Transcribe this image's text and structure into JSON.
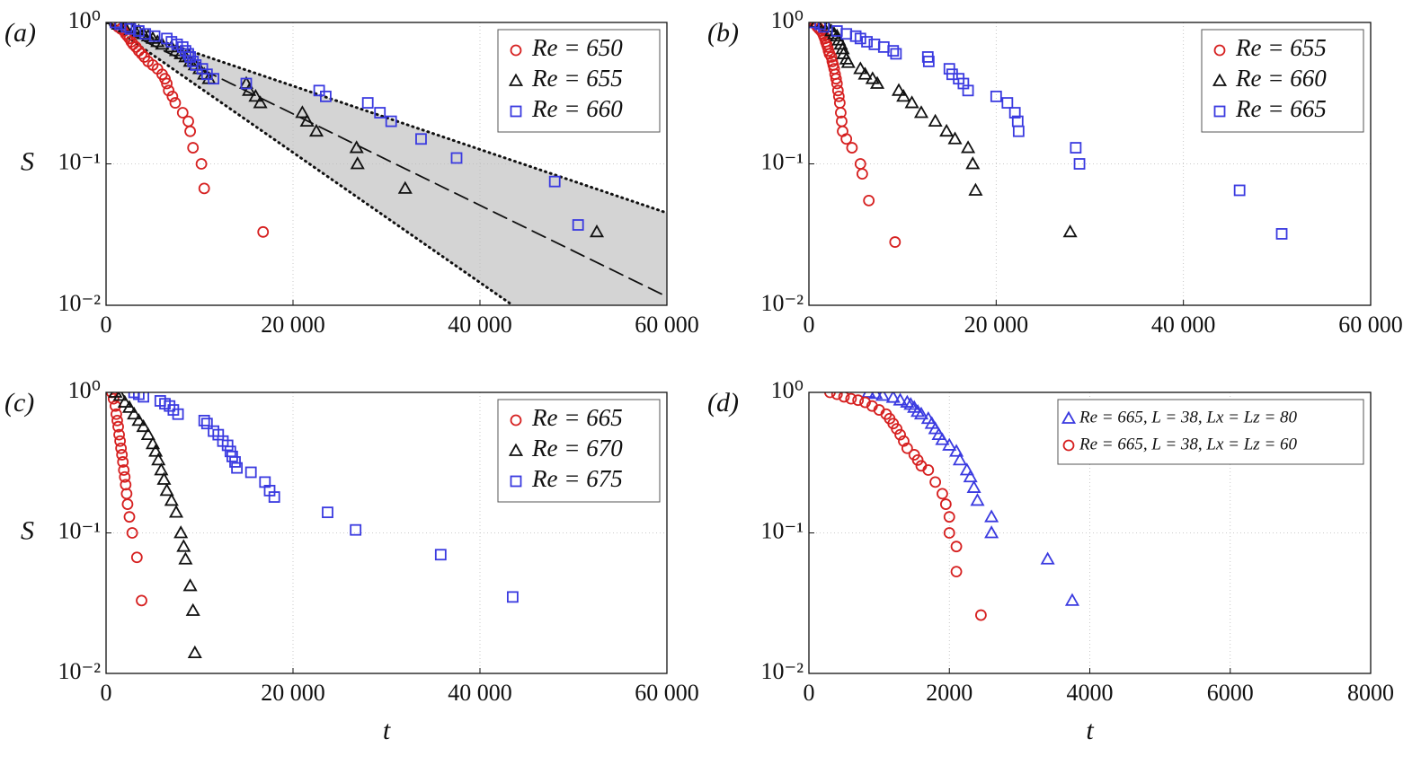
{
  "chart_data": [
    {
      "type": "scatter",
      "panel": "(a)",
      "ylabel": "S",
      "log_y": true,
      "grid": true,
      "legend": "upper right",
      "xlim": [
        0,
        60000
      ],
      "ylim": [
        0.01,
        1
      ],
      "xticks": [
        0,
        {
          "value": 20000,
          "label": "20 000"
        },
        {
          "value": 40000,
          "label": "40 000"
        },
        {
          "value": 60000,
          "label": "60 000"
        }
      ],
      "yticks": [
        {
          "value": 0.01,
          "label": "10⁻²"
        },
        {
          "value": 0.1,
          "label": "10⁻¹"
        },
        {
          "value": 1,
          "label": "10⁰"
        }
      ],
      "shade": {
        "between": [
          0,
          1
        ],
        "color": "#d4d4d4"
      },
      "lines": [
        {
          "style": "dotted",
          "x": [
            0,
            60000
          ],
          "values": [
            1,
            0.045
          ]
        },
        {
          "style": "dotted",
          "x": [
            0,
            43500
          ],
          "values": [
            1,
            0.01
          ]
        },
        {
          "style": "dashed",
          "x": [
            0,
            60000
          ],
          "values": [
            1,
            0.0115
          ]
        }
      ],
      "series": [
        {
          "name": "Re = 650",
          "color": "#d62020",
          "marker": "circle",
          "x": [
            1000,
            1300,
            1600,
            1900,
            2100,
            2300,
            2500,
            2700,
            2900,
            3200,
            3500,
            3800,
            4100,
            4500,
            5000,
            5500,
            6000,
            6300,
            6500,
            6700,
            7100,
            7400,
            8200,
            8800,
            9000,
            9300,
            10200,
            10500,
            16800
          ],
          "values": [
            0.97,
            0.93,
            0.9,
            0.87,
            0.83,
            0.8,
            0.77,
            0.73,
            0.7,
            0.67,
            0.63,
            0.6,
            0.57,
            0.53,
            0.5,
            0.47,
            0.43,
            0.4,
            0.37,
            0.33,
            0.3,
            0.27,
            0.23,
            0.2,
            0.17,
            0.13,
            0.1,
            0.067,
            0.033
          ]
        },
        {
          "name": "Re = 655",
          "color": "#111111",
          "marker": "triangle",
          "x": [
            1300,
            2000,
            3000,
            3500,
            4000,
            4500,
            5000,
            5500,
            6000,
            7000,
            7500,
            8000,
            8500,
            9000,
            9500,
            10000,
            10500,
            11000,
            15000,
            15300,
            16000,
            16500,
            21000,
            21500,
            22500,
            26800,
            26900,
            32000,
            52500
          ],
          "values": [
            0.97,
            0.93,
            0.9,
            0.87,
            0.83,
            0.8,
            0.77,
            0.73,
            0.7,
            0.67,
            0.63,
            0.6,
            0.57,
            0.53,
            0.5,
            0.47,
            0.43,
            0.4,
            0.37,
            0.33,
            0.3,
            0.27,
            0.23,
            0.2,
            0.17,
            0.13,
            0.1,
            0.067,
            0.033
          ]
        },
        {
          "name": "Re = 660",
          "color": "#3a3ae0",
          "marker": "square",
          "x": [
            1000,
            1500,
            2200,
            2600,
            3500,
            4200,
            5200,
            6500,
            7000,
            7600,
            8200,
            8500,
            8800,
            9000,
            9300,
            9600,
            10300,
            10800,
            11500,
            15000,
            22800,
            23500,
            28000,
            29300,
            30500,
            33700,
            37500,
            48000,
            50500
          ],
          "values": [
            1.0,
            0.97,
            0.93,
            0.9,
            0.87,
            0.83,
            0.8,
            0.77,
            0.73,
            0.7,
            0.67,
            0.63,
            0.6,
            0.57,
            0.53,
            0.5,
            0.47,
            0.43,
            0.4,
            0.37,
            0.33,
            0.3,
            0.27,
            0.23,
            0.2,
            0.15,
            0.11,
            0.075,
            0.037
          ]
        }
      ]
    },
    {
      "type": "scatter",
      "panel": "(b)",
      "log_y": true,
      "grid": true,
      "legend": "upper right",
      "xlim": [
        0,
        60000
      ],
      "ylim": [
        0.01,
        1
      ],
      "xticks": [
        0,
        {
          "value": 20000,
          "label": "20 000"
        },
        {
          "value": 40000,
          "label": "40 000"
        },
        {
          "value": 60000,
          "label": "60 000"
        }
      ],
      "yticks": [
        {
          "value": 0.01,
          "label": "10⁻²"
        },
        {
          "value": 0.1,
          "label": "10⁻¹"
        },
        {
          "value": 1,
          "label": "10⁰"
        }
      ],
      "series": [
        {
          "name": "Re = 655",
          "color": "#d62020",
          "marker": "circle",
          "x": [
            500,
            700,
            900,
            1100,
            1300,
            1500,
            1600,
            1700,
            1800,
            1900,
            2000,
            2100,
            2200,
            2400,
            2500,
            2600,
            2700,
            2800,
            2900,
            3000,
            3100,
            3200,
            3300,
            3400,
            3500,
            3600,
            4000,
            4600,
            5500,
            5700,
            6400,
            9200
          ],
          "values": [
            1,
            0.97,
            0.93,
            0.9,
            0.87,
            0.83,
            0.8,
            0.77,
            0.73,
            0.7,
            0.67,
            0.63,
            0.6,
            0.57,
            0.53,
            0.5,
            0.47,
            0.43,
            0.4,
            0.37,
            0.33,
            0.3,
            0.27,
            0.23,
            0.2,
            0.17,
            0.15,
            0.13,
            0.1,
            0.085,
            0.055,
            0.028
          ]
        },
        {
          "name": "Re = 660",
          "color": "#111111",
          "marker": "triangle",
          "x": [
            800,
            1400,
            2000,
            2400,
            2700,
            3000,
            3200,
            3400,
            3600,
            3700,
            4000,
            4200,
            5500,
            6000,
            6800,
            7300,
            9600,
            10100,
            11000,
            12000,
            13500,
            14700,
            15600,
            17000,
            17500,
            17800,
            27900
          ],
          "values": [
            1,
            0.97,
            0.93,
            0.87,
            0.83,
            0.8,
            0.75,
            0.7,
            0.65,
            0.6,
            0.55,
            0.52,
            0.47,
            0.43,
            0.4,
            0.37,
            0.33,
            0.3,
            0.27,
            0.23,
            0.2,
            0.17,
            0.15,
            0.13,
            0.1,
            0.065,
            0.033
          ]
        },
        {
          "name": "Re = 665",
          "color": "#3a3ae0",
          "marker": "square",
          "x": [
            500,
            1200,
            1600,
            3000,
            4000,
            5000,
            5500,
            6200,
            7000,
            8000,
            9000,
            9300,
            12700,
            12800,
            15000,
            15300,
            16000,
            16500,
            17000,
            20000,
            21200,
            22000,
            22300,
            22400,
            28500,
            28900,
            46000,
            50500
          ],
          "values": [
            1,
            0.97,
            0.93,
            0.87,
            0.83,
            0.8,
            0.77,
            0.73,
            0.7,
            0.67,
            0.63,
            0.6,
            0.57,
            0.53,
            0.47,
            0.43,
            0.4,
            0.37,
            0.33,
            0.3,
            0.27,
            0.23,
            0.2,
            0.17,
            0.13,
            0.1,
            0.065,
            0.032
          ]
        }
      ]
    },
    {
      "type": "scatter",
      "panel": "(c)",
      "ylabel": "S",
      "xlabel": "t",
      "log_y": true,
      "grid": true,
      "legend": "upper right",
      "xlim": [
        0,
        60000
      ],
      "ylim": [
        0.01,
        1
      ],
      "xticks": [
        0,
        {
          "value": 20000,
          "label": "20 000"
        },
        {
          "value": 40000,
          "label": "40 000"
        },
        {
          "value": 60000,
          "label": "60 000"
        }
      ],
      "yticks": [
        {
          "value": 0.01,
          "label": "10⁻²"
        },
        {
          "value": 0.1,
          "label": "10⁻¹"
        },
        {
          "value": 1,
          "label": "10⁰"
        }
      ],
      "series": [
        {
          "name": "Re = 665",
          "color": "#d62020",
          "marker": "circle",
          "x": [
            600,
            800,
            1000,
            1100,
            1200,
            1300,
            1400,
            1500,
            1600,
            1700,
            1800,
            1900,
            2000,
            2100,
            2200,
            2300,
            2500,
            2800,
            3300,
            3800
          ],
          "values": [
            1,
            0.9,
            0.8,
            0.7,
            0.63,
            0.57,
            0.5,
            0.45,
            0.4,
            0.36,
            0.32,
            0.28,
            0.25,
            0.22,
            0.19,
            0.16,
            0.13,
            0.1,
            0.067,
            0.033
          ]
        },
        {
          "name": "Re = 670",
          "color": "#111111",
          "marker": "triangle",
          "x": [
            1000,
            1500,
            2000,
            2500,
            3000,
            3500,
            4000,
            4500,
            5000,
            5300,
            5600,
            5900,
            6200,
            6500,
            7000,
            7500,
            8000,
            8300,
            8500,
            9000,
            9300,
            9500
          ],
          "values": [
            1,
            0.95,
            0.85,
            0.78,
            0.7,
            0.63,
            0.57,
            0.5,
            0.43,
            0.38,
            0.33,
            0.28,
            0.24,
            0.2,
            0.17,
            0.14,
            0.1,
            0.08,
            0.065,
            0.042,
            0.028,
            0.014
          ]
        },
        {
          "name": "Re = 675",
          "color": "#3a3ae0",
          "marker": "square",
          "x": [
            3000,
            3500,
            4000,
            5800,
            6300,
            6800,
            7200,
            7700,
            10500,
            10800,
            11500,
            12000,
            12500,
            13000,
            13300,
            13500,
            13800,
            14000,
            15500,
            17000,
            17500,
            18000,
            23700,
            26700,
            35800,
            43500
          ],
          "values": [
            1,
            0.97,
            0.93,
            0.87,
            0.83,
            0.8,
            0.75,
            0.7,
            0.63,
            0.6,
            0.53,
            0.5,
            0.45,
            0.42,
            0.38,
            0.35,
            0.32,
            0.29,
            0.27,
            0.23,
            0.2,
            0.18,
            0.14,
            0.105,
            0.07,
            0.035
          ]
        }
      ]
    },
    {
      "type": "scatter",
      "panel": "(d)",
      "xlabel": "t",
      "log_y": true,
      "grid": true,
      "legend": "upper right",
      "xlim": [
        0,
        8000
      ],
      "ylim": [
        0.01,
        1
      ],
      "xticks": [
        0,
        2000,
        4000,
        6000,
        8000
      ],
      "yticks": [
        {
          "value": 0.01,
          "label": "10⁻²"
        },
        {
          "value": 0.1,
          "label": "10⁻¹"
        },
        {
          "value": 1,
          "label": "10⁰"
        }
      ],
      "series": [
        {
          "name": "Re = 665, L = 38, Lx = Lz = 80",
          "color": "#3a3ae0",
          "marker": "triangle",
          "x": [
            850,
            950,
            1050,
            1200,
            1300,
            1400,
            1450,
            1500,
            1550,
            1600,
            1700,
            1750,
            1800,
            1850,
            1900,
            2000,
            2100,
            2150,
            2250,
            2300,
            2350,
            2400,
            2600,
            2600,
            3400,
            3750
          ],
          "values": [
            1,
            0.98,
            0.95,
            0.92,
            0.88,
            0.85,
            0.82,
            0.78,
            0.73,
            0.7,
            0.65,
            0.6,
            0.55,
            0.5,
            0.46,
            0.42,
            0.38,
            0.33,
            0.28,
            0.25,
            0.21,
            0.17,
            0.13,
            0.1,
            0.065,
            0.033
          ]
        },
        {
          "name": "Re = 665, L = 38, Lx = Lz = 60",
          "color": "#d62020",
          "marker": "circle",
          "x": [
            300,
            400,
            500,
            600,
            700,
            800,
            900,
            1000,
            1100,
            1150,
            1200,
            1250,
            1300,
            1350,
            1400,
            1500,
            1550,
            1600,
            1700,
            1800,
            1900,
            1950,
            2000,
            2000,
            2100,
            2100,
            2450
          ],
          "values": [
            1,
            0.97,
            0.93,
            0.9,
            0.88,
            0.85,
            0.8,
            0.75,
            0.7,
            0.65,
            0.6,
            0.55,
            0.5,
            0.45,
            0.4,
            0.36,
            0.33,
            0.3,
            0.28,
            0.23,
            0.19,
            0.16,
            0.13,
            0.1,
            0.08,
            0.053,
            0.026
          ]
        }
      ]
    }
  ]
}
